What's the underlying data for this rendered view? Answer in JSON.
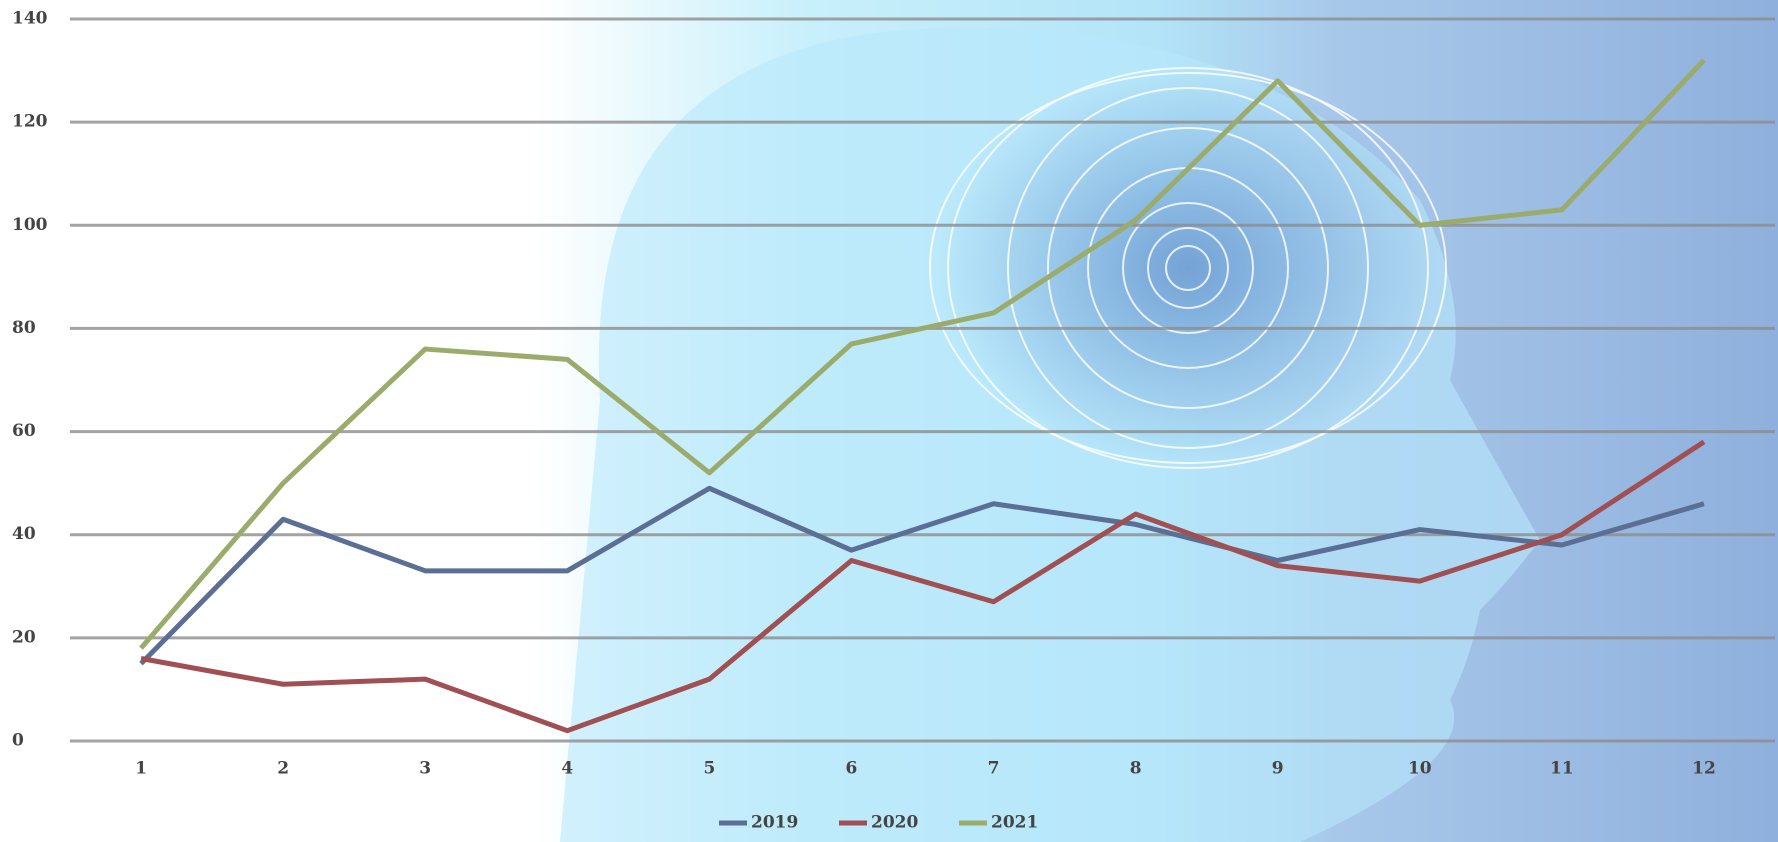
{
  "chart_data": {
    "type": "line",
    "categories": [
      "1",
      "2",
      "3",
      "4",
      "5",
      "6",
      "7",
      "8",
      "9",
      "10",
      "11",
      "12"
    ],
    "series": [
      {
        "name": "2019",
        "color": "#5b6e93",
        "values": [
          15,
          43,
          33,
          33,
          49,
          37,
          46,
          42,
          35,
          41,
          38,
          46
        ]
      },
      {
        "name": "2020",
        "color": "#a04f52",
        "values": [
          16,
          11,
          12,
          2,
          12,
          35,
          27,
          44,
          34,
          31,
          40,
          58
        ]
      },
      {
        "name": "2021",
        "color": "#9bab6b",
        "values": [
          18,
          50,
          76,
          74,
          52,
          77,
          83,
          101,
          128,
          100,
          103,
          132
        ]
      }
    ],
    "ylim": [
      0,
      140
    ],
    "yticks": [
      0,
      20,
      40,
      60,
      80,
      100,
      120,
      140
    ],
    "grid": true,
    "legend": "bottom"
  }
}
